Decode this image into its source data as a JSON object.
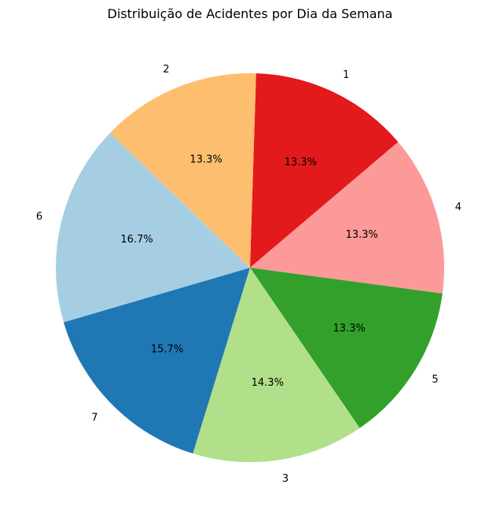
{
  "chart_data": {
    "type": "pie",
    "title": "Distribuição de Acidentes por Dia da Semana",
    "start_angle_deg": 88.2,
    "direction": "clockwise",
    "slices": [
      {
        "label": "1",
        "value": 13.3,
        "pct_label": "13.3%",
        "color": "#e31a1c"
      },
      {
        "label": "4",
        "value": 13.3,
        "pct_label": "13.3%",
        "color": "#fb9a99"
      },
      {
        "label": "5",
        "value": 13.3,
        "pct_label": "13.3%",
        "color": "#33a02c"
      },
      {
        "label": "3",
        "value": 14.3,
        "pct_label": "14.3%",
        "color": "#b2df8a"
      },
      {
        "label": "7",
        "value": 15.7,
        "pct_label": "15.7%",
        "color": "#1f78b4"
      },
      {
        "label": "6",
        "value": 16.7,
        "pct_label": "16.7%",
        "color": "#a6cee3"
      },
      {
        "label": "2",
        "value": 13.3,
        "pct_label": "13.3%",
        "color": "#fdbf6f"
      }
    ]
  }
}
